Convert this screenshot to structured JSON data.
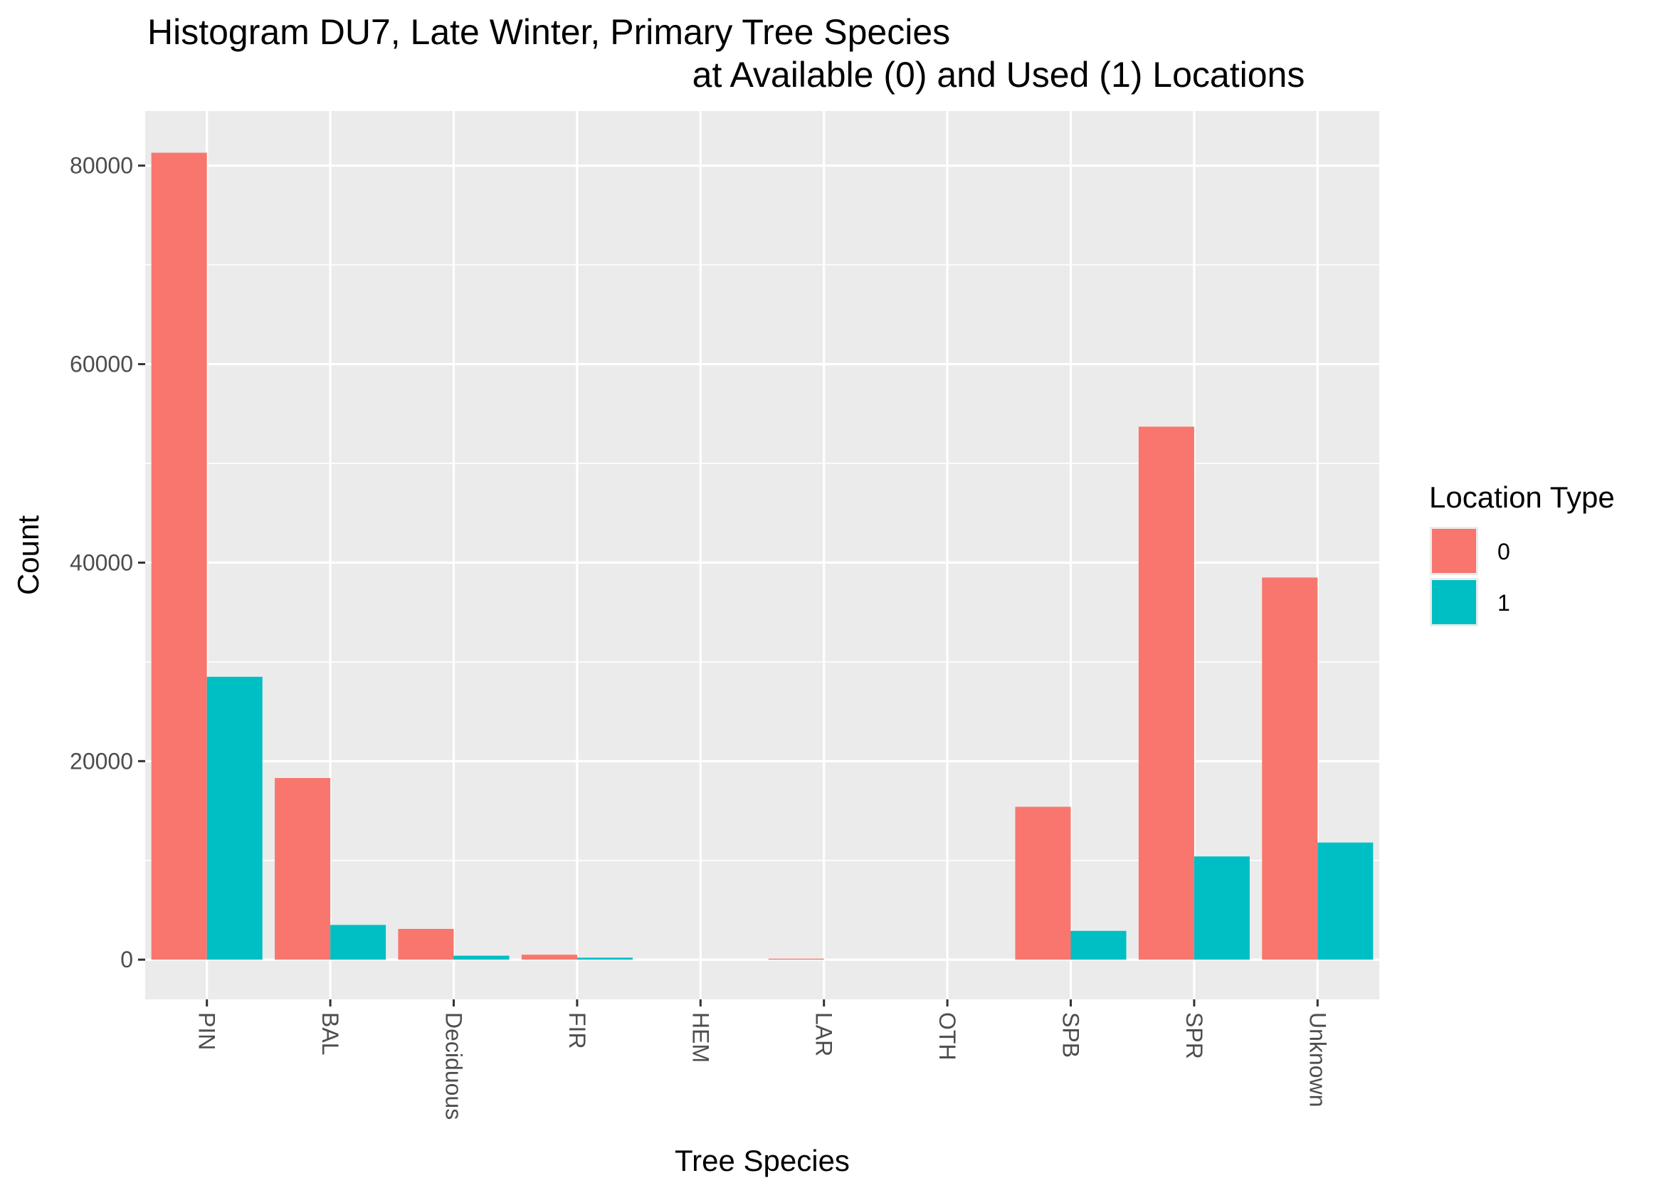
{
  "colors": {
    "panel_bg": "#EBEBEB",
    "grid": "#FFFFFF",
    "tick": "#333333",
    "series_0": "#F8766D",
    "series_1": "#00BFC4"
  },
  "chart_data": {
    "type": "bar",
    "title_line1": "Histogram DU7, Late Winter, Primary Tree Species",
    "title_line2": "at Available (0) and Used (1) Locations",
    "xlabel": "Tree Species",
    "ylabel": "Count",
    "categories": [
      "PIN",
      "BAL",
      "Deciduous",
      "FIR",
      "HEM",
      "LAR",
      "OTH",
      "SPB",
      "SPR",
      "Unknown"
    ],
    "series": [
      {
        "name": "0",
        "values": [
          81300,
          18300,
          3100,
          500,
          0,
          100,
          0,
          15400,
          53700,
          38500
        ]
      },
      {
        "name": "1",
        "values": [
          28500,
          3500,
          400,
          200,
          0,
          0,
          0,
          2900,
          10400,
          11800
        ]
      }
    ],
    "ylim": [
      -4000,
      85500
    ],
    "yticks": [
      0,
      20000,
      40000,
      60000,
      80000
    ],
    "ytick_labels": [
      "0",
      "20000",
      "40000",
      "60000",
      "80000"
    ],
    "legend": {
      "title": "Location Type",
      "position": "right"
    },
    "grid": true
  }
}
